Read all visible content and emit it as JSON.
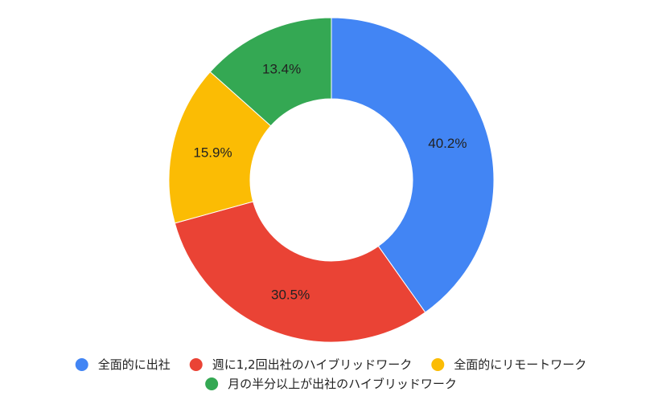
{
  "chart_data": {
    "type": "pie",
    "donut": true,
    "title": "",
    "legend_position": "bottom",
    "slices": [
      {
        "label": "全面的に出社",
        "value": 40.2,
        "value_label": "40.2%",
        "color": "#4285F4"
      },
      {
        "label": "週に1,2回出社のハイブリッドワーク",
        "value": 30.5,
        "value_label": "30.5%",
        "color": "#EA4335"
      },
      {
        "label": "全面的にリモートワーク",
        "value": 15.9,
        "value_label": "15.9%",
        "color": "#FBBC04"
      },
      {
        "label": "月の半分以上が出社のハイブリッドワーク",
        "value": 13.4,
        "value_label": "13.4%",
        "color": "#34A853"
      }
    ]
  }
}
